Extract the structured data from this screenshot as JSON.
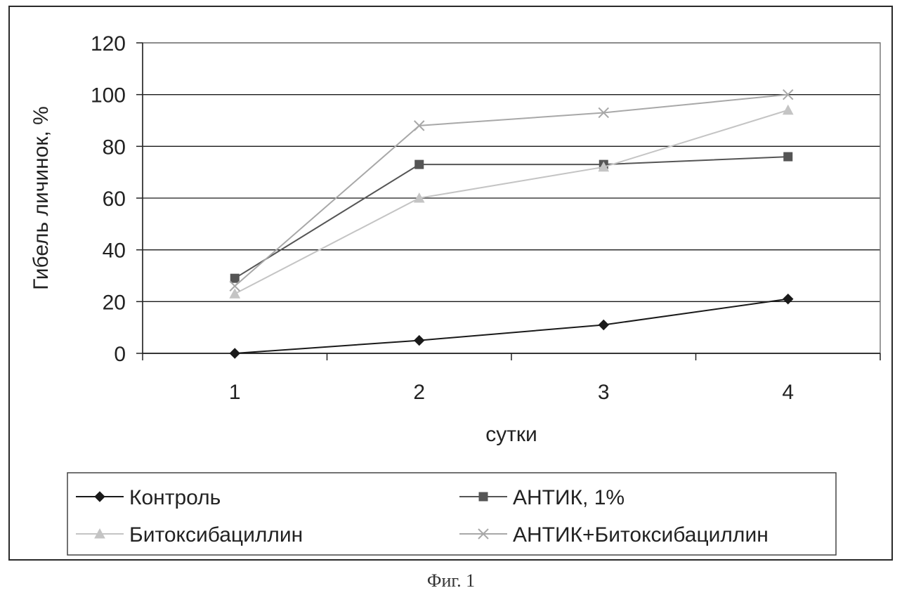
{
  "caption": "Фиг. 1",
  "chart_data": {
    "type": "line",
    "title": "",
    "xlabel": "сутки",
    "ylabel": "Гибель личинок, %",
    "ylabel_display": "Гибель личинок, %",
    "categories": [
      "1",
      "2",
      "3",
      "4"
    ],
    "yticks": [
      "0",
      "20",
      "40",
      "60",
      "80",
      "100",
      "120"
    ],
    "ylim": [
      0,
      120
    ],
    "grid": "horizontal",
    "legend_position": "bottom",
    "series": [
      {
        "name": "Контроль",
        "values": [
          0,
          5,
          11,
          21
        ],
        "color": "#1a1a1a",
        "marker": "diamond"
      },
      {
        "name": "АНТИК, 1%",
        "values": [
          29,
          73,
          73,
          76
        ],
        "color": "#555555",
        "marker": "square"
      },
      {
        "name": "Битоксибациллин",
        "values": [
          23,
          60,
          72,
          94
        ],
        "color": "#c4c4c4",
        "marker": "triangle"
      },
      {
        "name": "АНТИК+Битоксибациллин",
        "values": [
          26,
          88,
          93,
          100
        ],
        "color": "#a8a8a8",
        "marker": "x"
      }
    ]
  }
}
